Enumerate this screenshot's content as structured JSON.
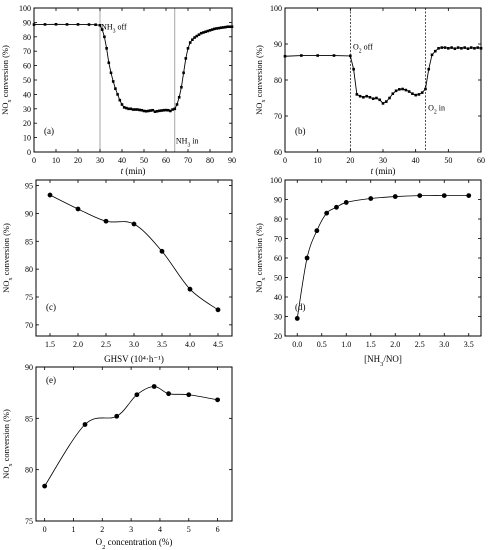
{
  "chart_data": [
    {
      "id": "a",
      "type": "line",
      "panel_label": "(a)",
      "xlabel_symbol": "t",
      "xlabel_unit": " (min)",
      "ylabel": "NOx conversion (%)",
      "xlim": [
        0,
        90
      ],
      "ylim": [
        0,
        100
      ],
      "xticks": [
        0,
        10,
        20,
        30,
        40,
        50,
        60,
        70,
        80,
        90
      ],
      "yticks": [
        0,
        10,
        20,
        30,
        40,
        50,
        60,
        70,
        80,
        90,
        100
      ],
      "vlines": [
        30,
        64
      ],
      "annotations": [
        {
          "text": "NH3 off",
          "x": 30.5,
          "y": 85
        },
        {
          "text": "NH3 in",
          "x": 64.5,
          "y": 6
        }
      ],
      "series": [
        {
          "marker": "square",
          "x": [
            0,
            5,
            10,
            15,
            20,
            25,
            28,
            30,
            31,
            32,
            33,
            34,
            35,
            36,
            37,
            38,
            39,
            40,
            41,
            42,
            43,
            44,
            45,
            46,
            47,
            48,
            49,
            50,
            51,
            52,
            53,
            54,
            55,
            56,
            57,
            58,
            59,
            60,
            61,
            62,
            63,
            64,
            65,
            66,
            67,
            68,
            69,
            70,
            71,
            72,
            73,
            74,
            75,
            76,
            77,
            78,
            79,
            80,
            81,
            82,
            83,
            84,
            85,
            86,
            87,
            88,
            89,
            90
          ],
          "y": [
            88.5,
            88.6,
            88.7,
            88.6,
            88.6,
            88.5,
            88.4,
            88,
            85,
            80,
            72,
            62,
            55,
            49,
            44,
            40,
            36,
            33,
            31,
            30.5,
            30,
            30,
            29.5,
            29.5,
            29.5,
            29.2,
            29,
            28.5,
            28.3,
            28.5,
            28.8,
            29,
            28,
            28.3,
            28.6,
            28.8,
            29,
            29.1,
            29,
            28.5,
            29.5,
            30,
            33,
            38,
            45,
            55,
            65,
            72,
            76,
            78,
            79.5,
            80.5,
            81.5,
            82.5,
            83,
            83.5,
            84,
            84.5,
            85,
            85.5,
            85.8,
            86,
            86.3,
            86.5,
            86.7,
            87,
            87,
            87
          ]
        }
      ]
    },
    {
      "id": "b",
      "type": "line",
      "panel_label": "(b)",
      "xlabel_symbol": "t",
      "xlabel_unit": " (min)",
      "ylabel": "NOx conversion (%)",
      "xlim": [
        0,
        60
      ],
      "ylim": [
        60,
        100
      ],
      "xticks": [
        0,
        10,
        20,
        30,
        40,
        50,
        60
      ],
      "yticks": [
        60,
        70,
        80,
        90,
        100
      ],
      "vlines": [
        20,
        43
      ],
      "annotations": [
        {
          "text": "O2 off",
          "x": 20.8,
          "y": 88.5
        },
        {
          "text": "O2 in",
          "x": 43.8,
          "y": 71.5
        }
      ],
      "series": [
        {
          "marker": "square",
          "x": [
            0,
            5,
            10,
            15,
            20,
            21,
            22,
            23,
            24,
            25,
            26,
            27,
            28,
            29,
            30,
            31,
            32,
            33,
            34,
            35,
            36,
            37,
            38,
            39,
            40,
            41,
            42,
            43,
            44,
            45,
            46,
            47,
            48,
            49,
            50,
            51,
            52,
            53,
            54,
            55,
            56,
            57,
            58,
            59,
            60
          ],
          "y": [
            86.6,
            86.8,
            86.8,
            86.8,
            86.7,
            83,
            76,
            75.5,
            75.2,
            75.5,
            75.2,
            74.8,
            75,
            74.5,
            73.5,
            74,
            75,
            76.2,
            77,
            77.4,
            77.5,
            77.2,
            76.8,
            76.2,
            75.8,
            76,
            76.5,
            77.5,
            83,
            87,
            88,
            88.8,
            89,
            89,
            88.8,
            89,
            88.7,
            89,
            88.8,
            89,
            88.7,
            89,
            88.8,
            89,
            88.8
          ]
        }
      ]
    },
    {
      "id": "c",
      "type": "line",
      "panel_label": "(c)",
      "xlabel": "GHSV (10⁴·h⁻¹)",
      "ylabel": "NOx conversion (%)",
      "xlim": [
        1.25,
        4.75
      ],
      "ylim": [
        68,
        96
      ],
      "xticks": [
        1.5,
        2.0,
        2.5,
        3.0,
        3.5,
        4.0,
        4.5
      ],
      "yticks": [
        70,
        75,
        80,
        85,
        90,
        95
      ],
      "series": [
        {
          "marker": "circle",
          "x": [
            1.5,
            2.0,
            2.5,
            3.0,
            3.5,
            4.0,
            4.5
          ],
          "y": [
            93.3,
            90.8,
            88.6,
            88.1,
            83.2,
            76.4,
            72.7
          ]
        }
      ]
    },
    {
      "id": "d",
      "type": "line",
      "panel_label": "(d)",
      "xlabel": "[NH3/NO]",
      "ylabel": "NOx conversion (%)",
      "xlim": [
        -0.25,
        3.75
      ],
      "ylim": [
        20,
        100
      ],
      "xticks": [
        0.0,
        0.5,
        1.0,
        1.5,
        2.0,
        2.5,
        3.0,
        3.5
      ],
      "yticks": [
        20,
        30,
        40,
        50,
        60,
        70,
        80,
        90,
        100
      ],
      "series": [
        {
          "marker": "circle",
          "x": [
            0.0,
            0.2,
            0.4,
            0.6,
            0.8,
            1.0,
            1.5,
            2.0,
            2.5,
            3.0,
            3.5
          ],
          "y": [
            29,
            60,
            74,
            83,
            86,
            88.5,
            90.5,
            91.5,
            92,
            92,
            92
          ]
        }
      ]
    },
    {
      "id": "e",
      "type": "line",
      "panel_label": "(e)",
      "xlabel": "O2 concentration (%)",
      "ylabel": "NOx conversion (%)",
      "xlim": [
        -0.3,
        6.5
      ],
      "ylim": [
        75,
        90
      ],
      "xticks": [
        0,
        1,
        2,
        3,
        4,
        5,
        6
      ],
      "yticks": [
        75,
        80,
        85,
        90
      ],
      "series": [
        {
          "marker": "circle",
          "x": [
            0,
            1.4,
            2.5,
            3.2,
            3.8,
            4.3,
            5.0,
            6.0
          ],
          "y": [
            78.4,
            84.4,
            85.2,
            87.3,
            88.1,
            87.4,
            87.3,
            86.8
          ]
        }
      ]
    }
  ]
}
